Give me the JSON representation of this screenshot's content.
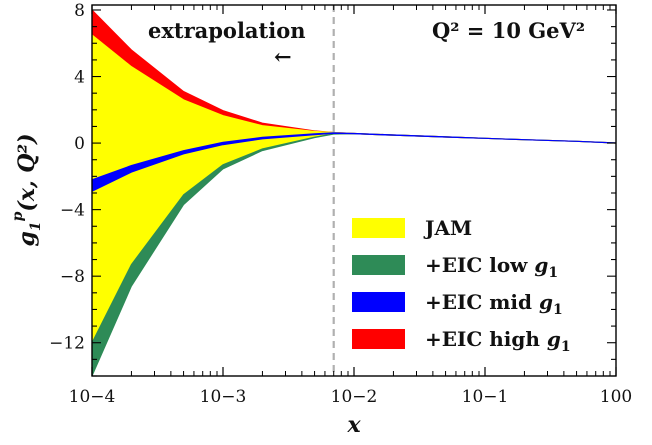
{
  "chart_data": {
    "type": "area",
    "title": "",
    "xlabel": "x",
    "ylabel": "g1p(x, Q^2)",
    "xscale": "log",
    "xlim": [
      0.0001,
      1
    ],
    "ylim": [
      -14,
      8.3
    ],
    "x_ticks": [
      0.0001,
      0.001,
      0.01,
      0.1,
      1
    ],
    "x_tick_labels": [
      "10−4",
      "10−3",
      "10−2",
      "10−1",
      "100"
    ],
    "y_ticks": [
      8,
      4,
      0,
      -4,
      -8,
      -12
    ],
    "y_tick_labels": [
      "8",
      "4",
      "0",
      "−4",
      "−8",
      "−12"
    ],
    "annotations": {
      "extrapolation": "extrapolation",
      "arrow": "←",
      "q2": "Q² = 10 GeV²"
    },
    "extrapolation_boundary_x": 0.007,
    "grid": false,
    "legend_position": "lower-right",
    "x": [
      0.0001,
      0.0002,
      0.0005,
      0.001,
      0.002,
      0.005,
      0.007,
      0.01,
      0.02,
      0.05,
      0.1,
      0.2,
      0.5,
      1
    ],
    "series": [
      {
        "name": "+EIC high g1",
        "color": "#ff0000",
        "lower": [
          6.5,
          4.6,
          2.6,
          1.65,
          1.05,
          0.68,
          0.62,
          0.56,
          0.47,
          0.36,
          0.28,
          0.2,
          0.1,
          0.0
        ],
        "upper": [
          8.0,
          5.6,
          3.1,
          1.95,
          1.2,
          0.73,
          0.64,
          0.58,
          0.49,
          0.38,
          0.29,
          0.21,
          0.11,
          0.02
        ]
      },
      {
        "name": "JAM",
        "color": "#ffff00",
        "lower": [
          -12.0,
          -7.3,
          -3.1,
          -1.3,
          -0.35,
          0.35,
          0.55,
          0.56,
          0.47,
          0.36,
          0.28,
          0.2,
          0.1,
          0.0
        ],
        "upper": [
          6.5,
          4.6,
          2.6,
          1.65,
          1.05,
          0.7,
          0.64,
          0.58,
          0.49,
          0.38,
          0.29,
          0.21,
          0.11,
          0.02
        ]
      },
      {
        "name": "+EIC low g1",
        "color": "#2e8b57",
        "lower": [
          -14.0,
          -8.6,
          -3.7,
          -1.55,
          -0.45,
          0.33,
          0.54,
          0.56,
          0.47,
          0.36,
          0.28,
          0.2,
          0.1,
          0.0
        ],
        "upper": [
          -12.0,
          -7.3,
          -3.1,
          -1.3,
          -0.35,
          0.36,
          0.56,
          0.58,
          0.49,
          0.38,
          0.29,
          0.21,
          0.11,
          0.02
        ]
      },
      {
        "name": "+EIC mid g1",
        "color": "#0000ff",
        "lower": [
          -2.9,
          -1.75,
          -0.65,
          -0.1,
          0.25,
          0.5,
          0.58,
          0.56,
          0.47,
          0.36,
          0.28,
          0.2,
          0.1,
          0.0
        ],
        "upper": [
          -2.2,
          -1.35,
          -0.45,
          0.05,
          0.35,
          0.56,
          0.62,
          0.58,
          0.49,
          0.38,
          0.29,
          0.21,
          0.11,
          0.02
        ]
      }
    ],
    "legend": [
      {
        "label_prefix": "JAM",
        "label_g": "",
        "color": "#ffff00"
      },
      {
        "label_prefix": "+EIC low ",
        "label_g": "g",
        "color": "#2e8b57"
      },
      {
        "label_prefix": "+EIC mid ",
        "label_g": "g",
        "color": "#0000ff"
      },
      {
        "label_prefix": "+EIC high ",
        "label_g": "g",
        "color": "#ff0000"
      }
    ],
    "legend_subscript": "1"
  }
}
